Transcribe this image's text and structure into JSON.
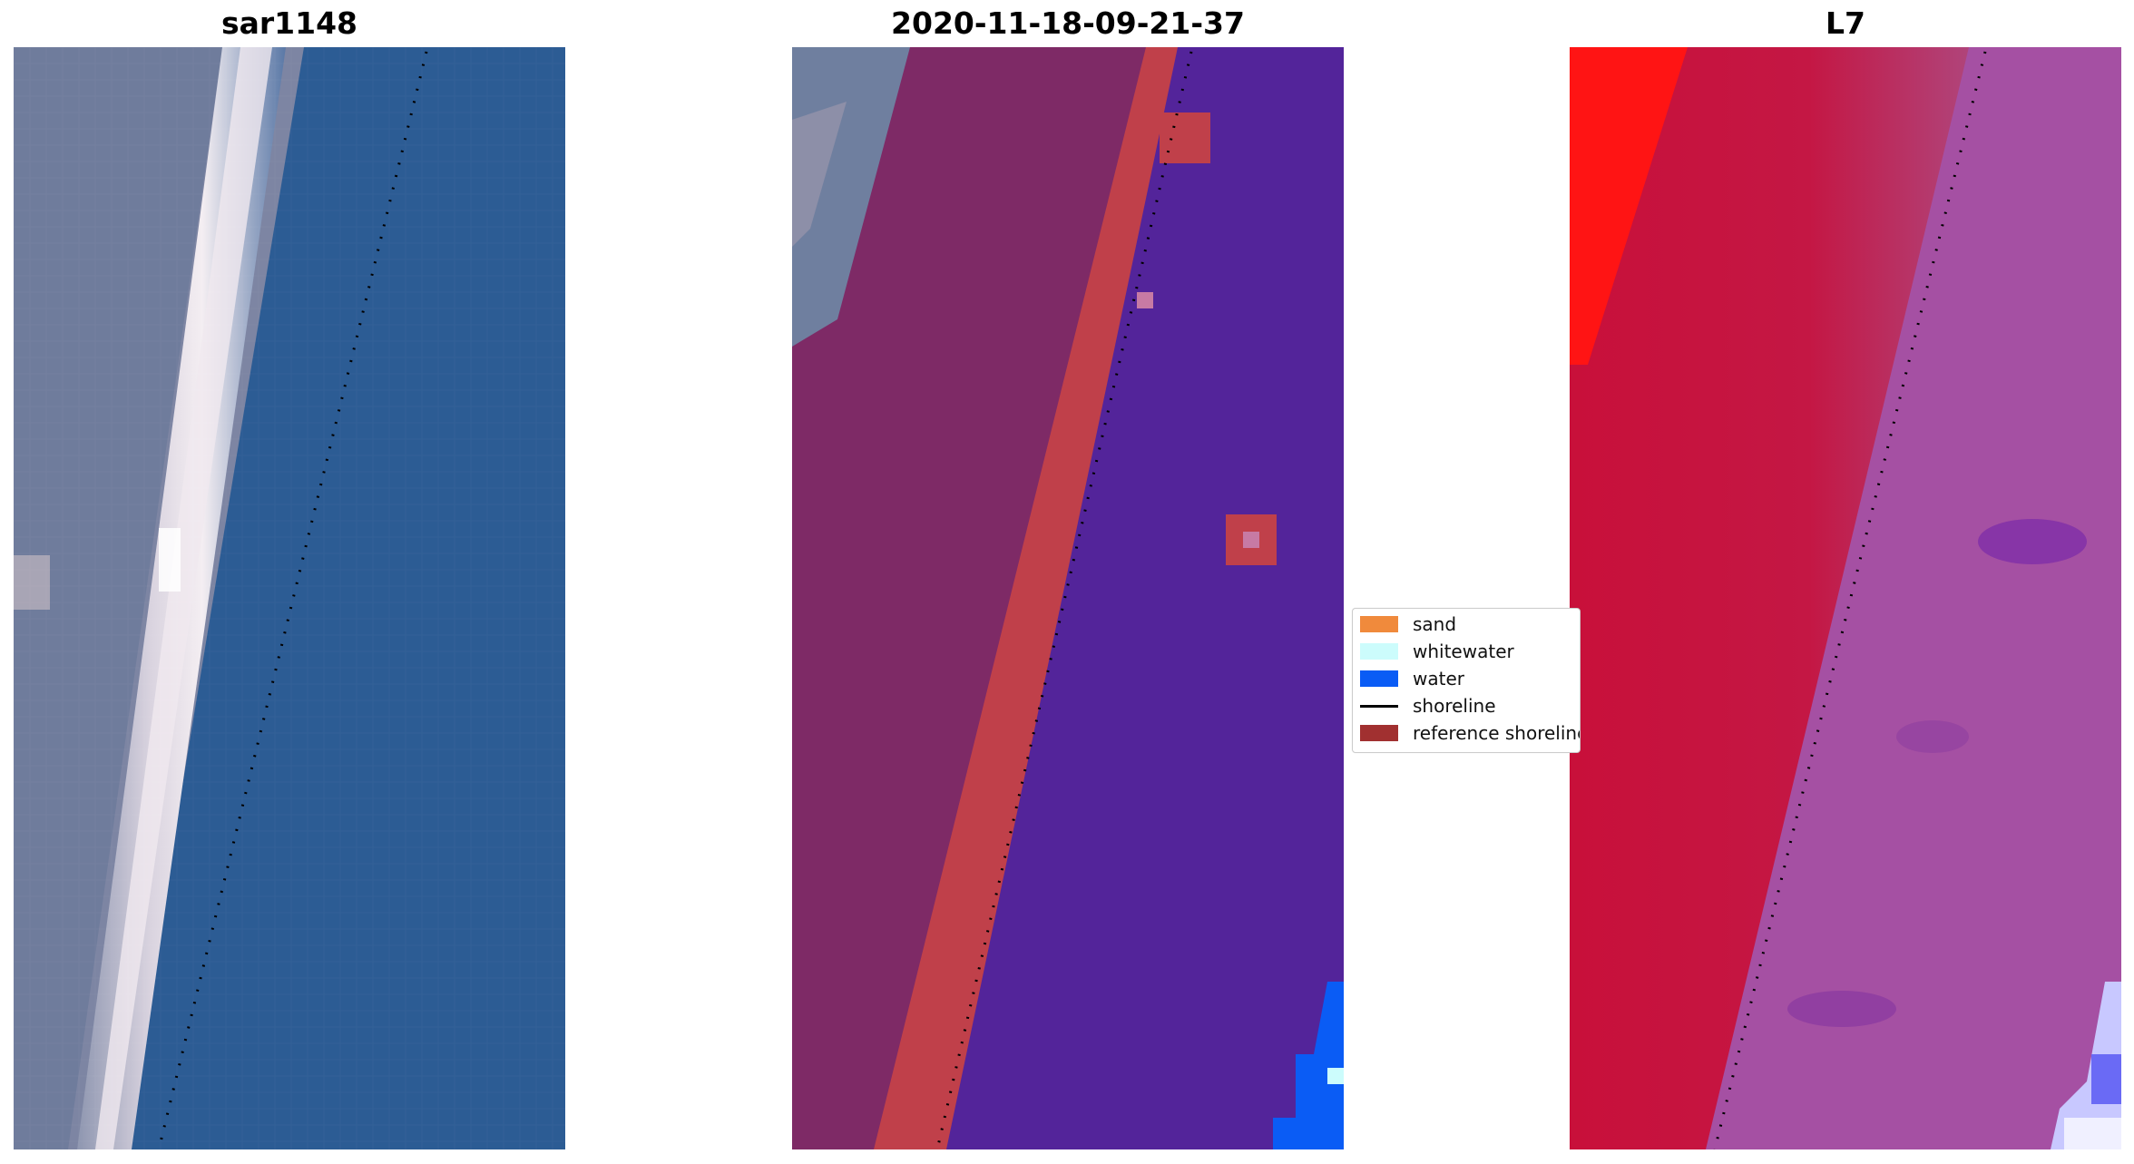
{
  "panels": [
    {
      "title": "sar1148"
    },
    {
      "title": "2020-11-18-09-21-37"
    },
    {
      "title": "L7"
    }
  ],
  "legend": {
    "items": [
      {
        "label": "sand",
        "color": "#f08a3c",
        "kind": "swatch"
      },
      {
        "label": "whitewater",
        "color": "#ccfcfc",
        "kind": "swatch"
      },
      {
        "label": "water",
        "color": "#0a5cf5",
        "kind": "swatch"
      },
      {
        "label": "shoreline",
        "color": "#000000",
        "kind": "line"
      },
      {
        "label": "reference shoreline",
        "color": "#a13030",
        "kind": "swatch"
      }
    ]
  },
  "colors": {
    "rgb_water": "#2f5f96",
    "rgb_land": "#7e86a4",
    "rgb_beach": "#e8dfe6",
    "class_water": "#53249a",
    "class_land": "#7e2a66",
    "class_sand_mix": "#c0404a",
    "nir_land": "#c8103a",
    "nir_bright": "#ff1414",
    "nir_water": "#a04ea0"
  }
}
